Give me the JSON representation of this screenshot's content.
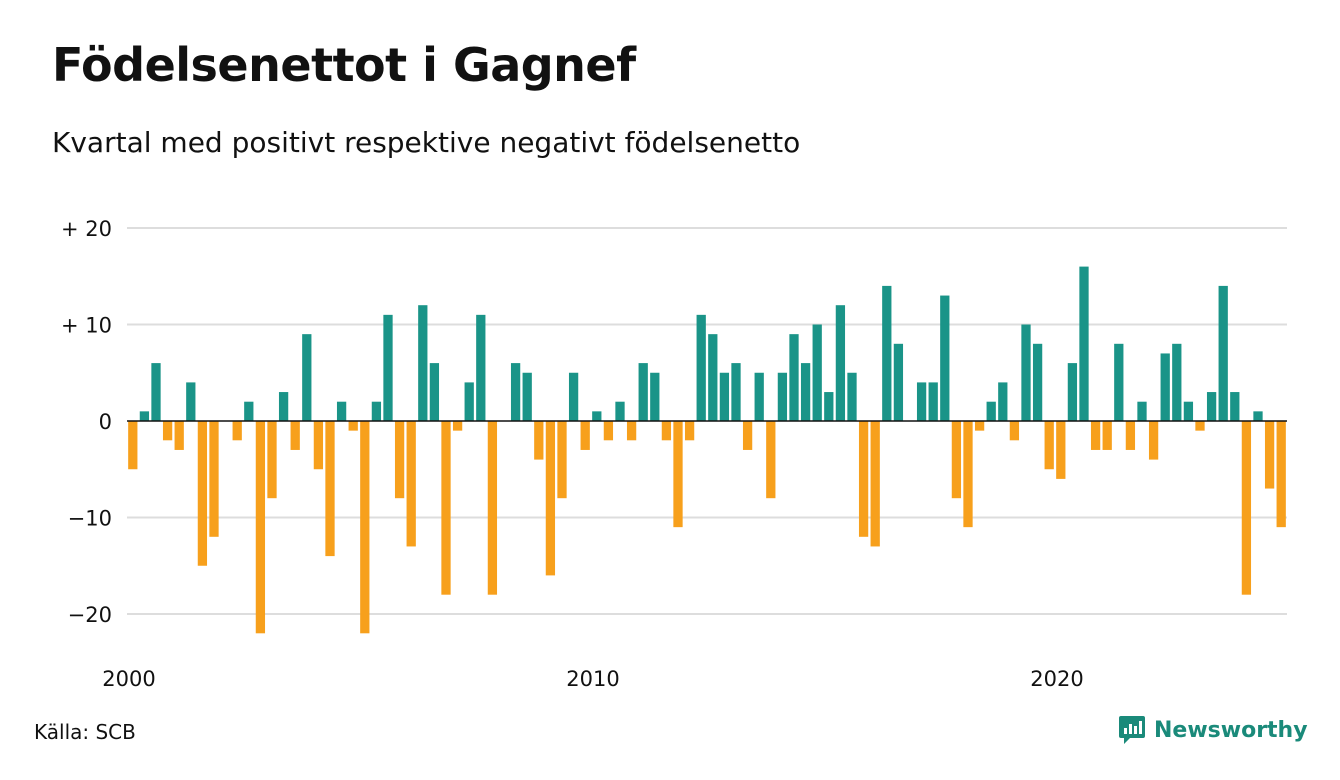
{
  "title": "Födelsenettot i Gagnef",
  "subtitle": "Kvartal med positivt respektive negativt födelsenetto",
  "source": "Källa: SCB",
  "brand": "Newsworthy",
  "colors": {
    "positive": "#1a9488",
    "negative": "#f7a01c",
    "grid": "#dddddd",
    "axis": "#111111",
    "brand": "#1a8a7a"
  },
  "chart_data": {
    "type": "bar",
    "y_ticks": [
      {
        "value": 20,
        "label": "+ 20"
      },
      {
        "value": 10,
        "label": "+ 10"
      },
      {
        "value": 0,
        "label": "0"
      },
      {
        "value": -10,
        "label": "−10"
      },
      {
        "value": -20,
        "label": "−20"
      }
    ],
    "x_ticks": [
      {
        "year": 2000,
        "label": "2000"
      },
      {
        "year": 2010,
        "label": "2010"
      },
      {
        "year": 2020,
        "label": "2020"
      }
    ],
    "ylim": [
      -22,
      20
    ],
    "start_year": 2000,
    "values": [
      -5,
      1,
      6,
      -2,
      -3,
      4,
      -15,
      -12,
      0,
      -2,
      2,
      -22,
      -8,
      3,
      -3,
      9,
      -5,
      -14,
      2,
      -1,
      -22,
      2,
      11,
      -8,
      -13,
      12,
      6,
      -18,
      -1,
      4,
      11,
      -18,
      0,
      6,
      5,
      -4,
      -16,
      -8,
      5,
      -3,
      1,
      -2,
      2,
      -2,
      6,
      5,
      -2,
      -11,
      -2,
      11,
      9,
      5,
      6,
      -3,
      5,
      -8,
      5,
      9,
      6,
      10,
      3,
      12,
      5,
      -12,
      -13,
      14,
      8,
      0,
      4,
      4,
      13,
      -8,
      -11,
      -1,
      2,
      4,
      -2,
      10,
      8,
      -5,
      -6,
      6,
      16,
      -3,
      -3,
      8,
      -3,
      2,
      -4,
      7,
      8,
      2,
      -1,
      3,
      14,
      3,
      -18,
      1,
      -7,
      -11
    ]
  }
}
